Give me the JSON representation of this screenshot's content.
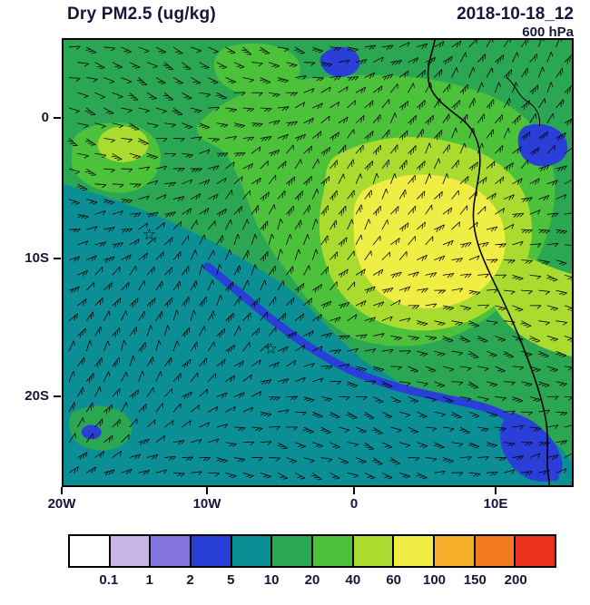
{
  "header": {
    "title": "Dry PM2.5 (ug/kg)",
    "datetime": "2018-10-18_12",
    "level": "600 hPa"
  },
  "map": {
    "x_ticks": [
      "20W",
      "10W",
      "0",
      "10E"
    ],
    "y_ticks": [
      "0",
      "10S",
      "20S"
    ],
    "marker_glyph": "☆"
  },
  "chart_data": {
    "type": "heatmap",
    "title": "Dry PM2.5 (ug/kg)",
    "valid_datetime": "2018-10-18_12",
    "pressure_level": "600 hPa",
    "units": "ug/kg",
    "x_tick_labels": [
      "20W",
      "10W",
      "0",
      "10E"
    ],
    "y_tick_labels": [
      "0",
      "10S",
      "20S"
    ],
    "colorbar": {
      "boundary_labels": [
        "0.1",
        "1",
        "2",
        "5",
        "10",
        "20",
        "40",
        "60",
        "100",
        "150",
        "200"
      ],
      "colors": [
        "#FFFFFF",
        "#C9B6E9",
        "#8273DE",
        "#2A3FD8",
        "#0C8F94",
        "#2BA653",
        "#4CC13A",
        "#AADB2F",
        "#F0EE45",
        "#F6AE2B",
        "#F2791F",
        "#E9311C"
      ],
      "position": "bottom"
    },
    "overlays": [
      "wind-barbs",
      "coastline",
      "star-markers"
    ],
    "notes": "Filled-contour PM2.5 field over the southeast Atlantic and southwest Africa; teal background ~5-10, green plume 10-40 across north and east, yellow core 60-100 near the Angolan coast, narrow blue 2-5 band along the coastal front, wind barbs overlaid."
  }
}
